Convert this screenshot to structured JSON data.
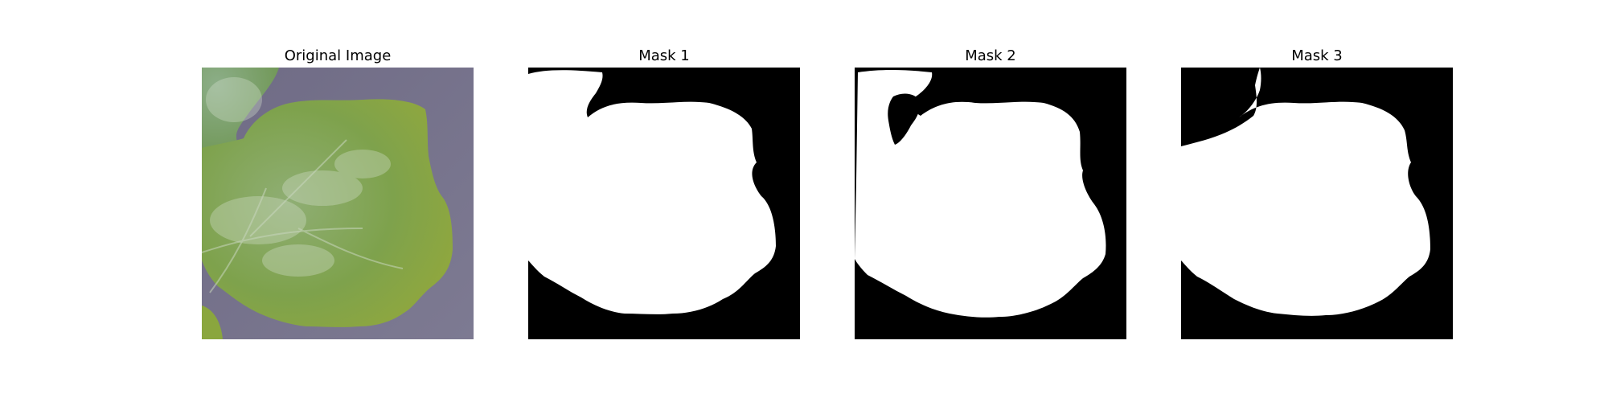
{
  "panels": [
    {
      "title": "Original Image",
      "content": "leaf-photo"
    },
    {
      "title": "Mask 1",
      "content": "binary-mask"
    },
    {
      "title": "Mask 2",
      "content": "binary-mask"
    },
    {
      "title": "Mask 3",
      "content": "binary-mask"
    }
  ],
  "colors": {
    "background": "#ffffff",
    "mask_background": "#000000",
    "mask_foreground": "#ffffff",
    "leaf_green": "#7fa24a",
    "surface_gray": "#74718a"
  }
}
